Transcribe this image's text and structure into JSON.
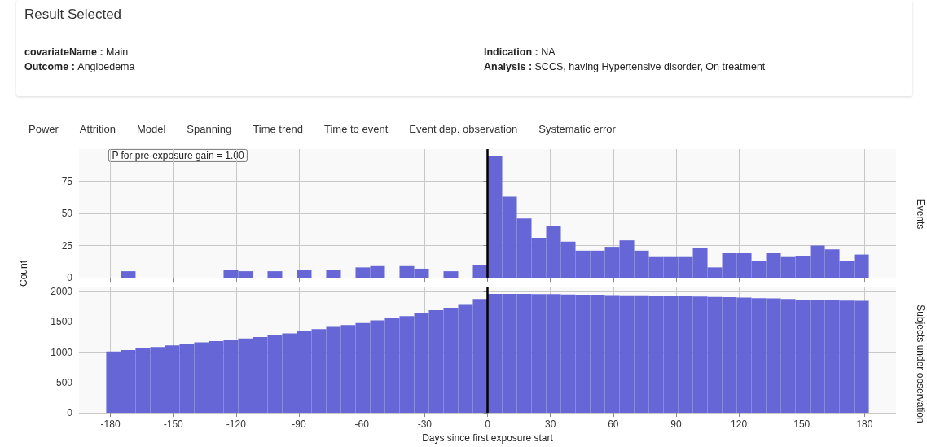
{
  "chart_data": [
    {
      "type": "other",
      "title": "Result Selected",
      "annotations": [
        "covariateName : Main",
        "Outcome : Angioedema",
        "Indication : NA",
        "Analysis : SCCS, having Hypertensive disorder, On treatment"
      ]
    },
    {
      "type": "other",
      "annotations": [
        "Power",
        "Attrition",
        "Model",
        "Spanning",
        "Time trend",
        "Time to event",
        "Event dep. observation",
        "Systematic error"
      ]
    },
    {
      "type": "histogram",
      "y2label": "Events",
      "color": "#6363d5",
      "bins": [
        -182,
        -175,
        -168,
        -161,
        -154,
        -147,
        -140,
        -133,
        -126,
        -119,
        -112,
        -105,
        -98,
        -91,
        -84,
        -77,
        -70,
        -63,
        -56,
        -49,
        -42,
        -35,
        -28,
        -21,
        -14,
        -7,
        0,
        7,
        14,
        21,
        28,
        35,
        42,
        49,
        56,
        63,
        70,
        77,
        84,
        91,
        98,
        105,
        112,
        119,
        126,
        133,
        140,
        147,
        154,
        161,
        168,
        175,
        182
      ],
      "values": [
        0,
        5,
        0,
        0,
        0,
        0,
        0,
        0,
        6,
        5,
        0,
        5,
        0,
        6,
        0,
        6,
        0,
        8,
        9,
        0,
        9,
        7,
        0,
        5,
        0,
        10,
        95,
        63,
        46,
        31,
        40,
        28,
        21,
        21,
        24,
        29,
        21,
        16,
        16,
        16,
        23,
        8,
        19,
        19,
        13,
        19,
        16,
        17,
        25,
        22,
        13,
        18
      ],
      "xlim": [
        -195,
        195
      ],
      "xticks": [
        -180,
        -150,
        -120,
        -90,
        -60,
        -30,
        0,
        30,
        60,
        90,
        120,
        150,
        180
      ],
      "ylim": [
        0,
        100
      ],
      "yticks": [
        0,
        25,
        50,
        75
      ],
      "tick_labels": "y",
      "grid": true,
      "ref_lines": [
        {
          "axis": "x",
          "value": 0,
          "color": "#000000"
        }
      ],
      "annotations": [
        "P for pre-exposure gain = 1.00"
      ]
    },
    {
      "type": "histogram",
      "xlabel": "Days since first exposure start",
      "ylabel": "Count",
      "y2label": "Subjects under observation",
      "color": "#6363d5",
      "bins": [
        -182,
        -175,
        -168,
        -161,
        -154,
        -147,
        -140,
        -133,
        -126,
        -119,
        -112,
        -105,
        -98,
        -91,
        -84,
        -77,
        -70,
        -63,
        -56,
        -49,
        -42,
        -35,
        -28,
        -21,
        -14,
        -7,
        0,
        7,
        14,
        21,
        28,
        35,
        42,
        49,
        56,
        63,
        70,
        77,
        84,
        91,
        98,
        105,
        112,
        119,
        126,
        133,
        140,
        147,
        154,
        161,
        168,
        175,
        182
      ],
      "values": [
        1010,
        1035,
        1065,
        1085,
        1110,
        1135,
        1160,
        1180,
        1205,
        1225,
        1250,
        1275,
        1310,
        1350,
        1380,
        1415,
        1445,
        1480,
        1525,
        1570,
        1595,
        1645,
        1690,
        1730,
        1790,
        1875,
        1960,
        1960,
        1960,
        1955,
        1955,
        1950,
        1945,
        1945,
        1940,
        1935,
        1935,
        1930,
        1925,
        1920,
        1915,
        1910,
        1905,
        1900,
        1890,
        1885,
        1875,
        1865,
        1860,
        1855,
        1850,
        1845
      ],
      "xlim": [
        -195,
        195
      ],
      "xticks": [
        -180,
        -150,
        -120,
        -90,
        -60,
        -30,
        0,
        30,
        60,
        90,
        120,
        150,
        180
      ],
      "ylim": [
        0,
        2080
      ],
      "yticks": [
        0,
        500,
        1000,
        1500,
        2000
      ],
      "grid": true,
      "ref_lines": [
        {
          "axis": "x",
          "value": 0,
          "color": "#000000"
        }
      ]
    }
  ]
}
